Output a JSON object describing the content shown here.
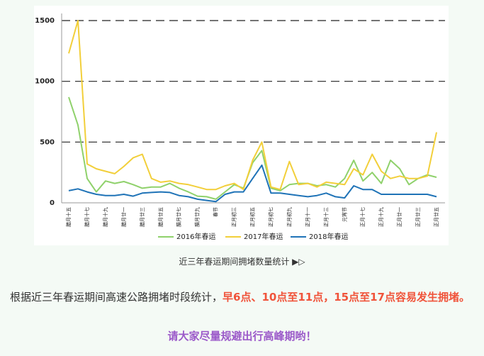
{
  "chart_data": {
    "type": "line",
    "categories": [
      "腊月十五",
      null,
      "腊月十七",
      null,
      "腊月十九",
      null,
      "腊月廿一",
      null,
      "腊月廿三",
      null,
      "腊月廿五",
      null,
      "腊月廿七",
      null,
      "腊月廿九",
      null,
      "春节",
      null,
      "正月初三",
      null,
      "正月初五",
      null,
      "正月初七",
      null,
      "正月初九",
      null,
      "正月十一",
      null,
      "正月十三",
      null,
      "元宵节",
      null,
      "正月十七",
      null,
      "正月十九",
      null,
      "正月廿一",
      null,
      "正月廿三",
      null,
      "正月廿五"
    ],
    "series": [
      {
        "name": "2016年春运",
        "color": "#8fd16b",
        "values": [
          870,
          640,
          200,
          90,
          180,
          160,
          175,
          150,
          120,
          130,
          130,
          160,
          120,
          90,
          55,
          50,
          30,
          90,
          150,
          120,
          330,
          430,
          120,
          100,
          150,
          160,
          160,
          140,
          150,
          130,
          200,
          350,
          180,
          250,
          160,
          350,
          280,
          150,
          200,
          230,
          210
        ]
      },
      {
        "name": "2017年春运",
        "color": "#f2cf3a",
        "values": [
          1230,
          1500,
          320,
          280,
          260,
          240,
          300,
          370,
          400,
          200,
          170,
          180,
          160,
          150,
          130,
          110,
          110,
          140,
          160,
          110,
          350,
          500,
          130,
          110,
          340,
          150,
          160,
          130,
          170,
          160,
          150,
          280,
          230,
          400,
          260,
          200,
          220,
          200,
          200,
          220,
          580
        ]
      },
      {
        "name": "2018年春运",
        "color": "#1f73b7",
        "values": [
          100,
          115,
          90,
          70,
          60,
          60,
          70,
          55,
          80,
          85,
          90,
          85,
          60,
          50,
          30,
          20,
          10,
          70,
          90,
          90,
          200,
          310,
          80,
          80,
          70,
          60,
          50,
          60,
          80,
          50,
          40,
          140,
          110,
          110,
          70,
          70,
          70,
          70,
          70,
          70,
          50
        ]
      }
    ],
    "ylim": [
      0,
      1500
    ],
    "yticks": [
      0,
      500,
      1000,
      1500
    ],
    "grid": true
  },
  "caption": "近三年春运期间拥堵数量统计 ▶▷",
  "paragraph": {
    "text": "根据近三年春运期间高速公路拥堵时段统计，",
    "highlight": "早6点、10点至11点，15点至17点容易发生拥堵。"
  },
  "call_to_action": "请大家尽量规避出行高峰期哟！"
}
